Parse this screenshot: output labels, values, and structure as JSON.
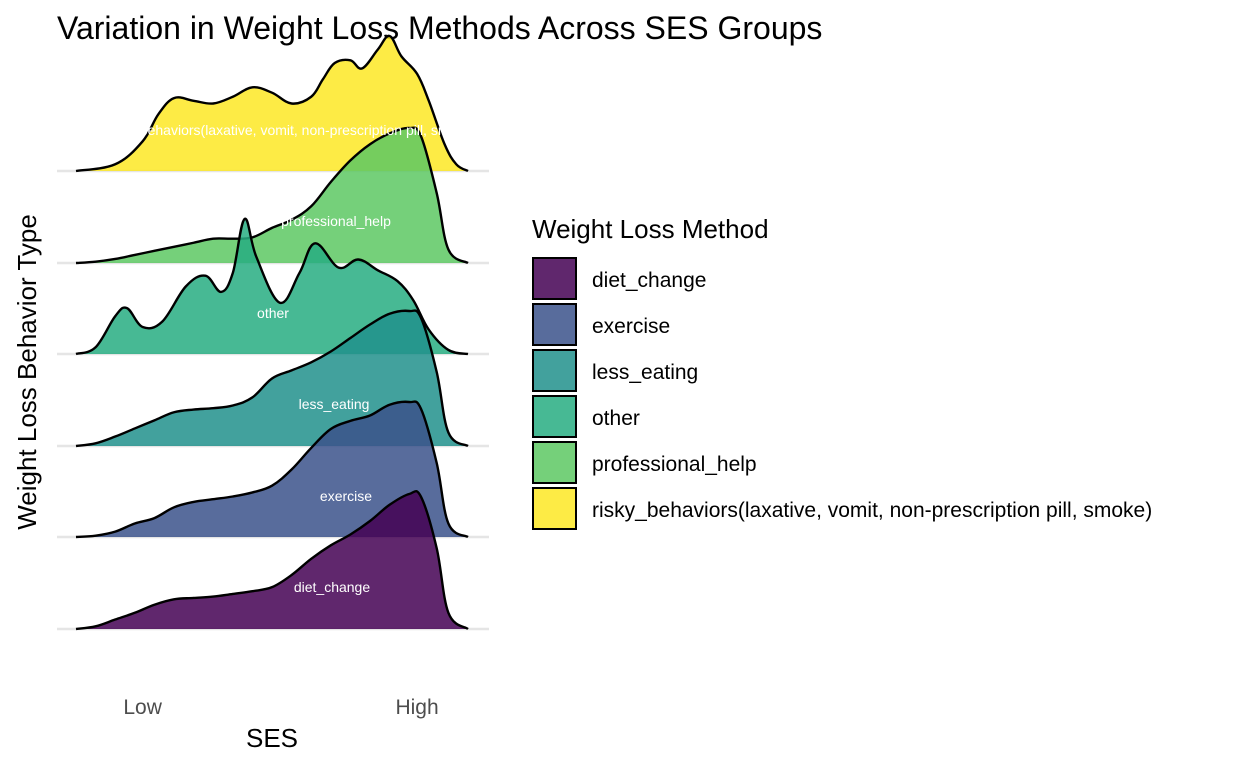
{
  "chart_data": {
    "type": "area",
    "subtype": "ridgeline",
    "title": "Variation in Weight Loss Methods Across SES Groups",
    "xlabel": "SES",
    "ylabel": "Weight Loss Behavior Type",
    "x_ticks": [
      "Low",
      "High"
    ],
    "xlim": [
      0,
      1
    ],
    "grid": true,
    "legend": {
      "title": "Weight Loss Method",
      "position": "right"
    },
    "series": [
      {
        "name": "diet_change",
        "label": "diet_change",
        "color": "#440154",
        "x": [
          0.0,
          0.05,
          0.1,
          0.15,
          0.2,
          0.25,
          0.3,
          0.35,
          0.4,
          0.45,
          0.5,
          0.55,
          0.6,
          0.65,
          0.7,
          0.75,
          0.8,
          0.85,
          0.88,
          0.92,
          0.95,
          1.0
        ],
        "density": [
          0.0,
          0.02,
          0.07,
          0.12,
          0.18,
          0.22,
          0.23,
          0.24,
          0.26,
          0.28,
          0.31,
          0.4,
          0.52,
          0.62,
          0.7,
          0.8,
          0.92,
          1.0,
          0.98,
          0.6,
          0.12,
          0.0
        ]
      },
      {
        "name": "exercise",
        "label": "exercise",
        "color": "#3B528B",
        "x": [
          0.0,
          0.05,
          0.1,
          0.15,
          0.2,
          0.25,
          0.3,
          0.35,
          0.4,
          0.45,
          0.5,
          0.55,
          0.6,
          0.65,
          0.7,
          0.75,
          0.8,
          0.85,
          0.88,
          0.92,
          0.95,
          1.0
        ],
        "density": [
          0.0,
          0.01,
          0.04,
          0.1,
          0.14,
          0.22,
          0.26,
          0.28,
          0.3,
          0.33,
          0.38,
          0.5,
          0.66,
          0.8,
          0.86,
          0.9,
          0.98,
          1.0,
          0.95,
          0.55,
          0.1,
          0.0
        ]
      },
      {
        "name": "less_eating",
        "label": "less_eating",
        "color": "#21908C",
        "x": [
          0.0,
          0.05,
          0.1,
          0.15,
          0.2,
          0.25,
          0.3,
          0.35,
          0.4,
          0.45,
          0.5,
          0.55,
          0.6,
          0.65,
          0.7,
          0.75,
          0.8,
          0.85,
          0.88,
          0.92,
          0.95,
          1.0
        ],
        "density": [
          0.0,
          0.02,
          0.07,
          0.13,
          0.19,
          0.25,
          0.27,
          0.28,
          0.3,
          0.36,
          0.5,
          0.56,
          0.62,
          0.7,
          0.8,
          0.9,
          0.98,
          1.0,
          0.95,
          0.55,
          0.1,
          0.0
        ]
      },
      {
        "name": "other",
        "label": "other",
        "color": "#27AD81",
        "x": [
          0.0,
          0.05,
          0.1,
          0.13,
          0.17,
          0.22,
          0.28,
          0.33,
          0.37,
          0.4,
          0.43,
          0.46,
          0.52,
          0.57,
          0.61,
          0.67,
          0.72,
          0.77,
          0.82,
          0.86,
          0.9,
          0.95,
          1.0
        ],
        "density": [
          0.0,
          0.05,
          0.28,
          0.34,
          0.2,
          0.24,
          0.5,
          0.58,
          0.46,
          0.6,
          1.0,
          0.72,
          0.38,
          0.6,
          0.82,
          0.64,
          0.7,
          0.62,
          0.54,
          0.4,
          0.18,
          0.03,
          0.0
        ]
      },
      {
        "name": "professional_help",
        "label": "professional_help",
        "color": "#5DC863",
        "x": [
          0.0,
          0.05,
          0.1,
          0.15,
          0.2,
          0.25,
          0.3,
          0.35,
          0.4,
          0.45,
          0.5,
          0.55,
          0.6,
          0.65,
          0.7,
          0.75,
          0.8,
          0.85,
          0.88,
          0.92,
          0.95,
          1.0
        ],
        "density": [
          0.0,
          0.01,
          0.03,
          0.06,
          0.09,
          0.12,
          0.15,
          0.18,
          0.18,
          0.19,
          0.26,
          0.32,
          0.42,
          0.6,
          0.76,
          0.88,
          0.96,
          1.0,
          0.94,
          0.52,
          0.1,
          0.0
        ]
      },
      {
        "name": "risky_behaviors(laxative, vomit, non-prescription pill, smoke)",
        "label": "risky_behaviors(laxative, vomit, non-prescription pill, smoke)",
        "color": "#FDE725",
        "x": [
          0.0,
          0.1,
          0.17,
          0.21,
          0.25,
          0.3,
          0.35,
          0.4,
          0.45,
          0.5,
          0.55,
          0.6,
          0.63,
          0.66,
          0.7,
          0.73,
          0.77,
          0.8,
          0.83,
          0.87,
          0.9,
          0.94,
          0.97,
          1.0
        ],
        "density": [
          0.0,
          0.05,
          0.22,
          0.42,
          0.54,
          0.52,
          0.5,
          0.55,
          0.62,
          0.58,
          0.5,
          0.55,
          0.68,
          0.8,
          0.82,
          0.76,
          0.9,
          1.0,
          0.85,
          0.72,
          0.52,
          0.2,
          0.05,
          0.0
        ]
      }
    ],
    "ridge_labels": [
      {
        "series": "diet_change",
        "text": "diet_change"
      },
      {
        "series": "exercise",
        "text": "exercise"
      },
      {
        "series": "less_eating",
        "text": "less_eating"
      },
      {
        "series": "other",
        "text": "other"
      },
      {
        "series": "professional_help",
        "text": "professional_help"
      },
      {
        "series": "risky_behaviors(laxative, vomit, non-prescription pill, smoke)",
        "text": "risky_behaviors(laxative, vomit, non-prescription pill, smoke)"
      }
    ]
  }
}
